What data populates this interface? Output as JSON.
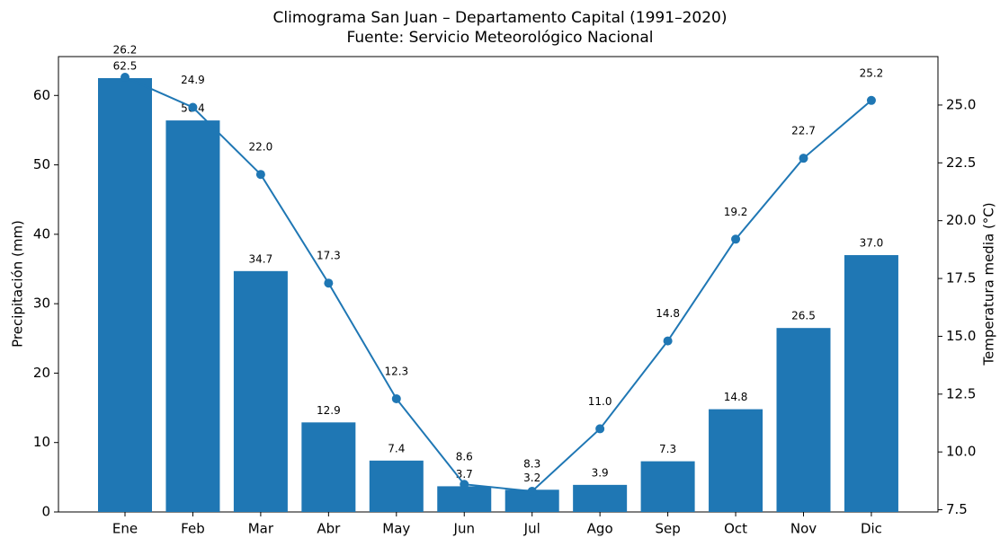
{
  "chart_data": {
    "type": "bar",
    "title": "Climograma San Juan – Departamento Capital (1991–2020)",
    "subtitle": "Fuente: Servicio Meteorológico Nacional",
    "y_label": "Precipitación (mm)",
    "y2_label": "Temperatura media (°C)",
    "categories": [
      "Ene",
      "Feb",
      "Mar",
      "Abr",
      "May",
      "Jun",
      "Jul",
      "Ago",
      "Sep",
      "Oct",
      "Nov",
      "Dic"
    ],
    "series": [
      {
        "name": "Precipitación",
        "type": "bar",
        "axis": "y",
        "color": "#1f77b4",
        "values": [
          62.5,
          56.4,
          34.7,
          12.9,
          7.4,
          3.7,
          3.2,
          3.9,
          7.3,
          14.8,
          26.5,
          37.0
        ],
        "value_labels": [
          "62.5",
          "56.4",
          "34.7",
          "12.9",
          "7.4",
          "3.7",
          "3.2",
          "3.9",
          "7.3",
          "14.8",
          "26.5",
          "37.0"
        ]
      },
      {
        "name": "Temperatura media",
        "type": "line",
        "axis": "y2",
        "color": "#1f77b4",
        "values": [
          26.2,
          24.9,
          22.0,
          17.3,
          12.3,
          8.6,
          8.3,
          11.0,
          14.8,
          19.2,
          22.7,
          25.2
        ],
        "value_labels": [
          "26.2",
          "24.9",
          "22.0",
          "17.3",
          "12.3",
          "8.6",
          "8.3",
          "11.0",
          "14.8",
          "19.2",
          "22.7",
          "25.2"
        ]
      }
    ],
    "ylim": [
      0,
      65.6
    ],
    "yticks": [
      0,
      10,
      20,
      30,
      40,
      50,
      60
    ],
    "y2lim": [
      7.405,
      27.095
    ],
    "y2ticks": [
      7.5,
      {
        "value": 10,
        "label": "10.0"
      },
      12.5,
      {
        "value": 15,
        "label": "15.0"
      },
      17.5,
      {
        "value": 20,
        "label": "20.0"
      },
      22.5,
      {
        "value": 25,
        "label": "25.0"
      }
    ],
    "grid": false
  }
}
